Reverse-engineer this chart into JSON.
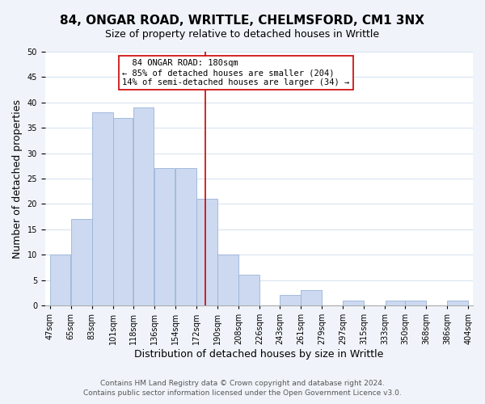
{
  "title": "84, ONGAR ROAD, WRITTLE, CHELMSFORD, CM1 3NX",
  "subtitle": "Size of property relative to detached houses in Writtle",
  "xlabel": "Distribution of detached houses by size in Writtle",
  "ylabel": "Number of detached properties",
  "footer_line1": "Contains HM Land Registry data © Crown copyright and database right 2024.",
  "footer_line2": "Contains public sector information licensed under the Open Government Licence v3.0.",
  "bar_edges": [
    47,
    65,
    83,
    101,
    118,
    136,
    154,
    172,
    190,
    208,
    226,
    243,
    261,
    279,
    297,
    315,
    333,
    350,
    368,
    386,
    404
  ],
  "bar_heights": [
    10,
    17,
    38,
    37,
    39,
    27,
    27,
    21,
    10,
    6,
    0,
    2,
    3,
    0,
    1,
    0,
    1,
    1,
    0,
    1
  ],
  "bar_color": "#ccd9f0",
  "bar_edgecolor": "#9ab4d8",
  "vline_x": 180,
  "vline_color": "#cc0000",
  "annotation_title": "84 ONGAR ROAD: 180sqm",
  "annotation_line1": "← 85% of detached houses are smaller (204)",
  "annotation_line2": "14% of semi-detached houses are larger (34) →",
  "annotation_box_edgecolor": "#cc0000",
  "annotation_box_facecolor": "#ffffff",
  "ylim": [
    0,
    50
  ],
  "yticks": [
    0,
    5,
    10,
    15,
    20,
    25,
    30,
    35,
    40,
    45,
    50
  ],
  "tick_labels": [
    "47sqm",
    "65sqm",
    "83sqm",
    "101sqm",
    "118sqm",
    "136sqm",
    "154sqm",
    "172sqm",
    "190sqm",
    "208sqm",
    "226sqm",
    "243sqm",
    "261sqm",
    "279sqm",
    "297sqm",
    "315sqm",
    "333sqm",
    "350sqm",
    "368sqm",
    "386sqm",
    "404sqm"
  ],
  "plot_bg_color": "#ffffff",
  "fig_bg_color": "#f0f4fa",
  "grid_color": "#d8e4f0",
  "title_fontsize": 11,
  "subtitle_fontsize": 9,
  "axis_label_fontsize": 9,
  "tick_fontsize": 7,
  "footer_fontsize": 6.5
}
